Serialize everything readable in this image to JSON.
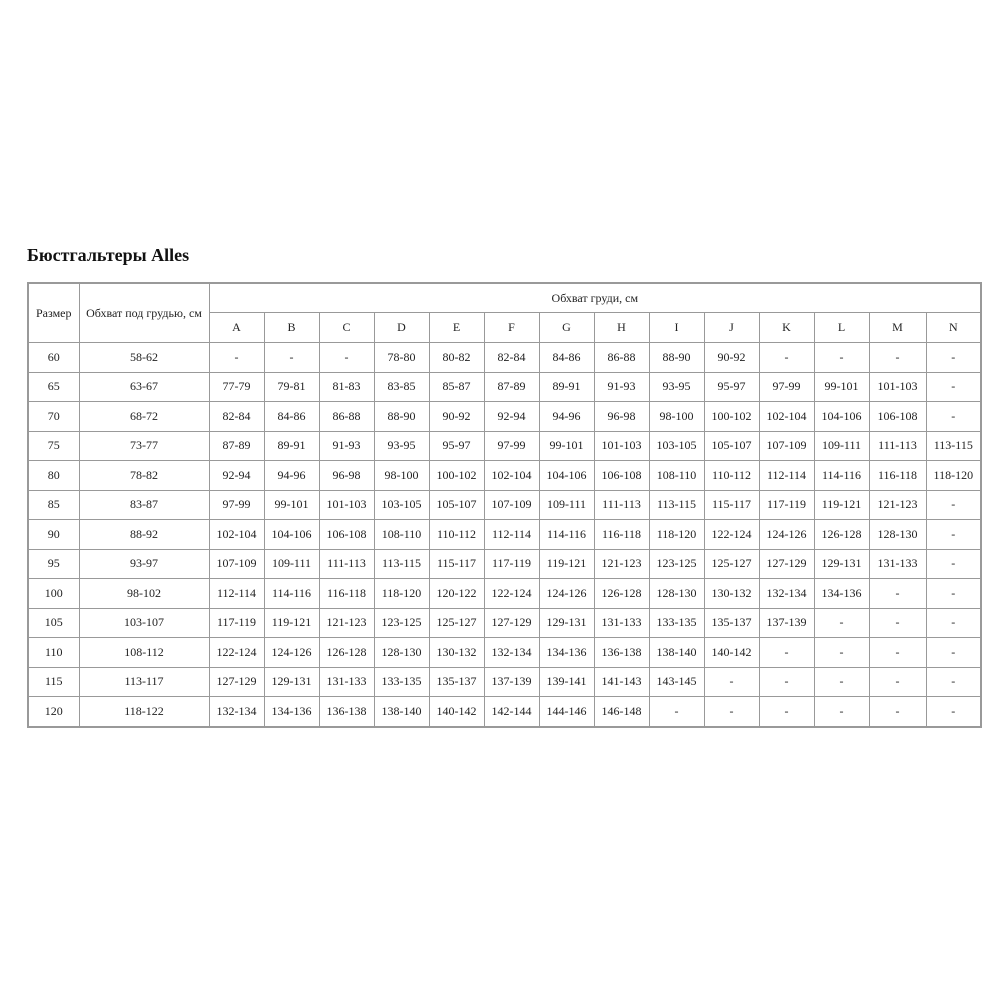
{
  "title": "Бюстгальтеры Alles",
  "table": {
    "header_size": "Размер",
    "header_underbust": "Обхват под грудью, см",
    "header_bust": "Обхват груди, см",
    "cups": [
      "A",
      "B",
      "C",
      "D",
      "E",
      "F",
      "G",
      "H",
      "I",
      "J",
      "K",
      "L",
      "M",
      "N"
    ],
    "rows": [
      {
        "size": "60",
        "underbust": "58-62",
        "values": [
          "-",
          "-",
          "-",
          "78-80",
          "80-82",
          "82-84",
          "84-86",
          "86-88",
          "88-90",
          "90-92",
          "-",
          "-",
          "-",
          "-"
        ]
      },
      {
        "size": "65",
        "underbust": "63-67",
        "values": [
          "77-79",
          "79-81",
          "81-83",
          "83-85",
          "85-87",
          "87-89",
          "89-91",
          "91-93",
          "93-95",
          "95-97",
          "97-99",
          "99-101",
          "101-103",
          "-"
        ]
      },
      {
        "size": "70",
        "underbust": "68-72",
        "values": [
          "82-84",
          "84-86",
          "86-88",
          "88-90",
          "90-92",
          "92-94",
          "94-96",
          "96-98",
          "98-100",
          "100-102",
          "102-104",
          "104-106",
          "106-108",
          "-"
        ]
      },
      {
        "size": "75",
        "underbust": "73-77",
        "values": [
          "87-89",
          "89-91",
          "91-93",
          "93-95",
          "95-97",
          "97-99",
          "99-101",
          "101-103",
          "103-105",
          "105-107",
          "107-109",
          "109-111",
          "111-113",
          "113-115"
        ]
      },
      {
        "size": "80",
        "underbust": "78-82",
        "values": [
          "92-94",
          "94-96",
          "96-98",
          "98-100",
          "100-102",
          "102-104",
          "104-106",
          "106-108",
          "108-110",
          "110-112",
          "112-114",
          "114-116",
          "116-118",
          "118-120"
        ]
      },
      {
        "size": "85",
        "underbust": "83-87",
        "values": [
          "97-99",
          "99-101",
          "101-103",
          "103-105",
          "105-107",
          "107-109",
          "109-111",
          "111-113",
          "113-115",
          "115-117",
          "117-119",
          "119-121",
          "121-123",
          "-"
        ]
      },
      {
        "size": "90",
        "underbust": "88-92",
        "values": [
          "102-104",
          "104-106",
          "106-108",
          "108-110",
          "110-112",
          "112-114",
          "114-116",
          "116-118",
          "118-120",
          "122-124",
          "124-126",
          "126-128",
          "128-130",
          "-"
        ]
      },
      {
        "size": "95",
        "underbust": "93-97",
        "values": [
          "107-109",
          "109-111",
          "111-113",
          "113-115",
          "115-117",
          "117-119",
          "119-121",
          "121-123",
          "123-125",
          "125-127",
          "127-129",
          "129-131",
          "131-133",
          "-"
        ]
      },
      {
        "size": "100",
        "underbust": "98-102",
        "values": [
          "112-114",
          "114-116",
          "116-118",
          "118-120",
          "120-122",
          "122-124",
          "124-126",
          "126-128",
          "128-130",
          "130-132",
          "132-134",
          "134-136",
          "-",
          "-"
        ]
      },
      {
        "size": "105",
        "underbust": "103-107",
        "values": [
          "117-119",
          "119-121",
          "121-123",
          "123-125",
          "125-127",
          "127-129",
          "129-131",
          "131-133",
          "133-135",
          "135-137",
          "137-139",
          "-",
          "-",
          "-"
        ]
      },
      {
        "size": "110",
        "underbust": "108-112",
        "values": [
          "122-124",
          "124-126",
          "126-128",
          "128-130",
          "130-132",
          "132-134",
          "134-136",
          "136-138",
          "138-140",
          "140-142",
          "-",
          "-",
          "-",
          "-"
        ]
      },
      {
        "size": "115",
        "underbust": "113-117",
        "values": [
          "127-129",
          "129-131",
          "131-133",
          "133-135",
          "135-137",
          "137-139",
          "139-141",
          "141-143",
          "143-145",
          "-",
          "-",
          "-",
          "-",
          "-"
        ]
      },
      {
        "size": "120",
        "underbust": "118-122",
        "values": [
          "132-134",
          "134-136",
          "136-138",
          "138-140",
          "140-142",
          "142-144",
          "144-146",
          "146-148",
          "-",
          "-",
          "-",
          "-",
          "-",
          "-"
        ]
      }
    ]
  }
}
